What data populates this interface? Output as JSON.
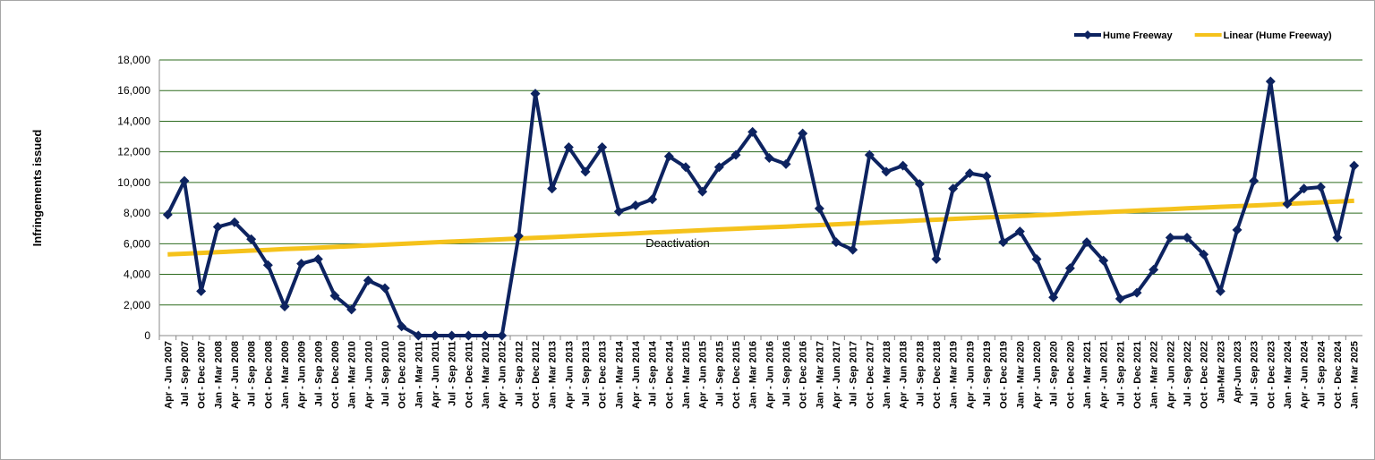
{
  "chart_data": {
    "type": "line",
    "y_label": "Infringements issued",
    "annotation": "Deactivation",
    "categories": [
      "Apr - Jun 2007",
      "Jul - Sep 2007",
      "Oct - Dec 2007",
      "Jan - Mar 2008",
      "Apr - Jun 2008",
      "Jul - Sep 2008",
      "Oct - Dec 2008",
      "Jan - Mar 2009",
      "Apr - Jun 2009",
      "Jul - Sep 2009",
      "Oct - Dec 2009",
      "Jan - Mar 2010",
      "Apr - Jun 2010",
      "Jul - Sep 2010",
      "Oct - Dec 2010",
      "Jan - Mar 2011",
      "Apr - Jun 2011",
      "Jul - Sep 2011",
      "Oct - Dec 2011",
      "Jan - Mar 2012",
      "Apr - Jun 2012",
      "Jul - Sep 2012",
      "Oct - Dec 2012",
      "Jan - Mar 2013",
      "Apr - Jun 2013",
      "Jul - Sep 2013",
      "Oct - Dec 2013",
      "Jan - Mar 2014",
      "Apr - Jun 2014",
      "Jul - Sep 2014",
      "Oct - Dec 2014",
      "Jan - Mar 2015",
      "Apr - Jun 2015",
      "Jul - Sep 2015",
      "Oct - Dec 2015",
      "Jan - Mar 2016",
      "Apr - Jun 2016",
      "Jul - Sep 2016",
      "Oct - Dec 2016",
      "Jan - Mar 2017",
      "Apr - Jun 2017",
      "Jul - Sep 2017",
      "Oct - Dec 2017",
      "Jan - Mar 2018",
      "Apr - Jun 2018",
      "Jul - Sep 2018",
      "Oct - Dec 2018",
      "Jan - Mar 2019",
      "Apr - Jun 2019",
      "Jul - Sep 2019",
      "Oct - Dec 2019",
      "Jan - Mar 2020",
      "Apr - Jun 2020",
      "Jul - Sep 2020",
      "Oct - Dec 2020",
      "Jan - Mar 2021",
      "Apr - Jun 2021",
      "Jul - Sep 2021",
      "Oct - Dec 2021",
      "Jan - Mar 2022",
      "Apr - Jun 2022",
      "Jul - Sep 2022",
      "Oct - Dec 2022",
      "Jan-Mar 2023",
      "Apr-Jun 2023",
      "Jul - Sep 2023",
      "Oct - Dec 2023",
      "Jan - Mar 2024",
      "Apr - Jun 2024",
      "Jul - Sep 2024",
      "Oct - Dec 2024",
      "Jan - Mar 2025"
    ],
    "series": [
      {
        "name": "Hume Freeway",
        "color": "#0d2360",
        "marker": "diamond",
        "values": [
          7900,
          10100,
          2900,
          7100,
          7400,
          6300,
          4600,
          1900,
          4700,
          5000,
          2600,
          1700,
          3600,
          3100,
          600,
          0,
          0,
          0,
          0,
          0,
          0,
          6500,
          15800,
          9600,
          12300,
          10700,
          12300,
          8100,
          8500,
          8900,
          11700,
          11000,
          9400,
          11000,
          11800,
          13300,
          11600,
          11200,
          13200,
          8300,
          6100,
          5600,
          11800,
          10700,
          11100,
          9900,
          5000,
          9600,
          10600,
          10400,
          6100,
          6800,
          5000,
          2500,
          4400,
          6100,
          4900,
          2400,
          2800,
          4300,
          6400,
          6400,
          5300,
          2900,
          6900,
          10100,
          16600,
          8600,
          9600,
          9700,
          6400,
          11100
        ]
      },
      {
        "name": "Linear (Hume Freeway)",
        "color": "#f5c21b",
        "marker": "none",
        "values": [
          5300,
          5350,
          5400,
          5450,
          5500,
          5550,
          5600,
          5650,
          5690,
          5740,
          5790,
          5840,
          5890,
          5940,
          5990,
          6040,
          6090,
          6140,
          6190,
          6240,
          6290,
          6340,
          6380,
          6430,
          6480,
          6530,
          6580,
          6630,
          6680,
          6730,
          6780,
          6830,
          6880,
          6930,
          6980,
          7030,
          7070,
          7120,
          7170,
          7220,
          7270,
          7320,
          7370,
          7420,
          7470,
          7520,
          7570,
          7620,
          7670,
          7720,
          7760,
          7810,
          7860,
          7910,
          7960,
          8010,
          8060,
          8110,
          8160,
          8210,
          8260,
          8310,
          8360,
          8410,
          8450,
          8500,
          8550,
          8600,
          8650,
          8700,
          8750,
          8800
        ]
      }
    ],
    "ylim": [
      0,
      18000
    ],
    "yticks": [
      0,
      {
        "value": 2000,
        "label": "2,000"
      },
      {
        "value": 4000,
        "label": "4,000"
      },
      {
        "value": 6000,
        "label": "6,000"
      },
      {
        "value": 8000,
        "label": "8,000"
      },
      {
        "value": 10000,
        "label": "10,000"
      },
      {
        "value": 12000,
        "label": "12,000"
      },
      {
        "value": 14000,
        "label": "14,000"
      },
      {
        "value": 16000,
        "label": "16,000"
      },
      {
        "value": 18000,
        "label": "18,000"
      }
    ],
    "grid": true,
    "grid_color": "#2e6b1f",
    "legend": "top-right"
  }
}
